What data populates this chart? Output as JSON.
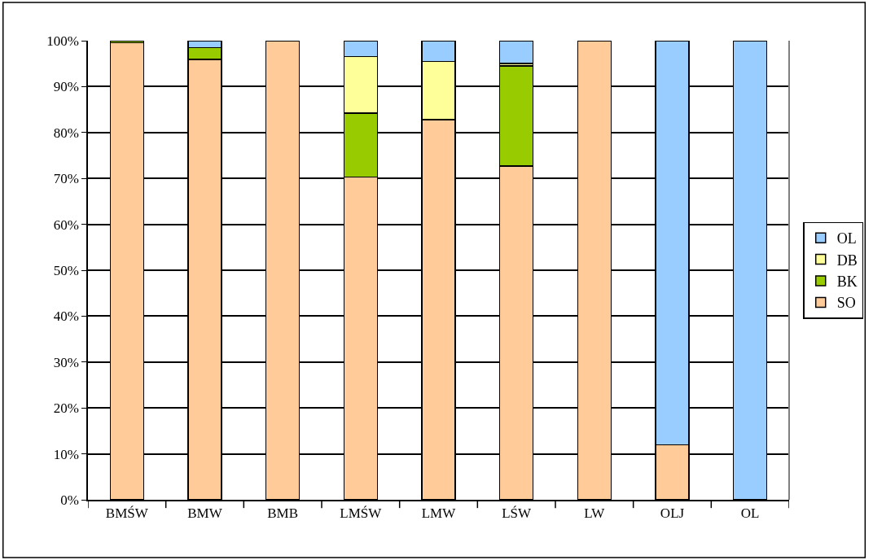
{
  "chart_data": {
    "type": "bar",
    "stacked": true,
    "categories": [
      "BMŚW",
      "BMW",
      "BMB",
      "LMŚW",
      "LMW",
      "LŚW",
      "LW",
      "OLJ",
      "OL"
    ],
    "series": [
      {
        "name": "SO",
        "color": "#ffcc99",
        "values": [
          99.6,
          95.9,
          100,
          70.3,
          82.8,
          72.7,
          100,
          12.0,
          null
        ]
      },
      {
        "name": "BK",
        "color": "#99cc00",
        "values": [
          0.4,
          2.6,
          null,
          13.9,
          null,
          21.8,
          null,
          null,
          null
        ]
      },
      {
        "name": "DB",
        "color": "#ffff99",
        "values": [
          null,
          null,
          null,
          12.3,
          12.7,
          0.5,
          null,
          null,
          null
        ]
      },
      {
        "name": "OL",
        "color": "#99ccff",
        "values": [
          null,
          1.5,
          null,
          3.5,
          4.5,
          5.0,
          null,
          88.0,
          100
        ]
      }
    ],
    "ylim": [
      0,
      100
    ],
    "yticks": [
      {
        "value": 0,
        "label": "0%"
      },
      {
        "value": 10,
        "label": "10%"
      },
      {
        "value": 20,
        "label": "20%"
      },
      {
        "value": 30,
        "label": "30%"
      },
      {
        "value": 40,
        "label": "40%"
      },
      {
        "value": 50,
        "label": "50%"
      },
      {
        "value": 60,
        "label": "60%"
      },
      {
        "value": 70,
        "label": "70%"
      },
      {
        "value": 80,
        "label": "80%"
      },
      {
        "value": 90,
        "label": "90%"
      },
      {
        "value": 100,
        "label": "100%"
      }
    ],
    "grid": "y",
    "legend": "right"
  }
}
